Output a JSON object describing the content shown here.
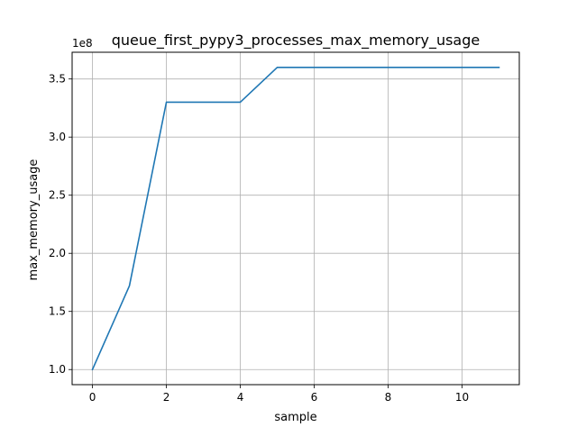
{
  "chart_data": {
    "type": "line",
    "title": "queue_first_pypy3_processes_max_memory_usage",
    "xlabel": "sample",
    "ylabel": "max_memory_usage",
    "y_offset_label": "1e8",
    "x": [
      0,
      1,
      2,
      3,
      4,
      5,
      6,
      7,
      8,
      9,
      10,
      11
    ],
    "series": [
      {
        "values": [
          100000000,
          172000000,
          330000000,
          330000000,
          330000000,
          360000000,
          360000000,
          360000000,
          360000000,
          360000000,
          360000000,
          360000000
        ],
        "color": "#1f77b4"
      }
    ],
    "xlim": [
      -0.55,
      11.55
    ],
    "ylim": [
      87000000,
      373000000
    ],
    "x_ticks": [
      0,
      2,
      4,
      6,
      8,
      10
    ],
    "x_tick_labels": [
      "0",
      "2",
      "4",
      "6",
      "8",
      "10"
    ],
    "y_ticks": [
      100000000,
      150000000,
      200000000,
      250000000,
      300000000,
      350000000
    ],
    "y_tick_labels": [
      "1.0",
      "1.5",
      "2.0",
      "2.5",
      "3.0",
      "3.5"
    ],
    "grid": true,
    "grid_color": "#b0b0b0"
  }
}
